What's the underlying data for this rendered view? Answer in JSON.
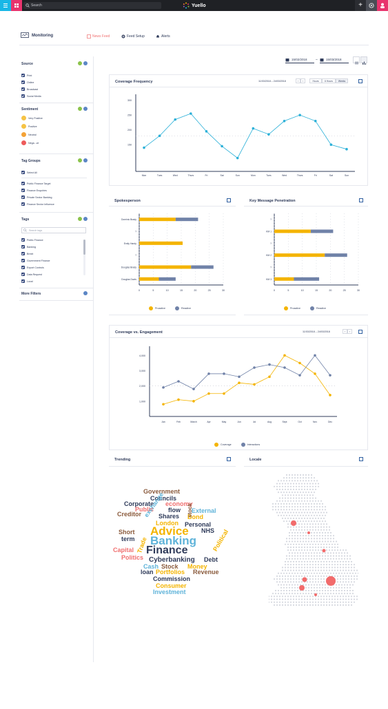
{
  "topbar": {
    "search_placeholder": "Search",
    "logo": "Yuello"
  },
  "nav": {
    "title": "Monitoring",
    "tabs": [
      "News Feed",
      "Feed Setup",
      "Alerts"
    ]
  },
  "dates": {
    "from": "15/02/2018",
    "to": "15/03/2018"
  },
  "sidebar": {
    "source": {
      "title": "Source",
      "items": [
        "Print",
        "Online",
        "Broadcast",
        "Social Media"
      ]
    },
    "sentiment": {
      "title": "Sentiment",
      "items": [
        "Very Positive",
        "Positive",
        "Neutral",
        "Nega...ve"
      ]
    },
    "tag_groups": {
      "title": "Tag Groups",
      "select_all": "Select All",
      "items": [
        "Public Finance Target",
        "Finance Enquiries",
        "Private Sector Banking",
        "Finance Sector Influence"
      ]
    },
    "tags": {
      "title": "Tags",
      "search_placeholder": "Search tags",
      "items": [
        "Public Finance",
        "Banking",
        "Brexit",
        "Government Finance",
        "Export Controls",
        "Data Request",
        "Local"
      ]
    },
    "more_filters": "More Filters",
    "colors": {
      "green": "#8bc34a",
      "blue": "#5b86c5"
    }
  },
  "coverage_frequency": {
    "title": "Coverage Frequency",
    "date_range": "11/03/2018  –  24/03/2018",
    "granularity": [
      "Hours",
      "6 Hours",
      "Weeks"
    ]
  },
  "spokesperson": {
    "title": "Spokesperson",
    "legend": [
      "Proactive",
      "Reactive"
    ]
  },
  "key_message": {
    "title": "Key Message Penetration",
    "legend": [
      "Proactive",
      "Reactive"
    ]
  },
  "coverage_engagement": {
    "title": "Coverage vs. Engagement",
    "date_range": "11/03/2018  –  24/03/2018",
    "legend": [
      "Coverage",
      "Interactions"
    ]
  },
  "trending": {
    "title": "Trending",
    "words": [
      {
        "t": "Government",
        "c": "#8a5a3c"
      },
      {
        "t": "Councils",
        "c": "#2f3b5a"
      },
      {
        "t": "Corporate",
        "c": "#2f3b5a"
      },
      {
        "t": "economy",
        "c": "#f07070"
      },
      {
        "t": "Public",
        "c": "#f07070"
      },
      {
        "t": "flow",
        "c": "#2f3b5a"
      },
      {
        "t": "External",
        "c": "#5fb3d9"
      },
      {
        "t": "Creditor",
        "c": "#8a5a3c"
      },
      {
        "t": "exchange",
        "c": "#5fb3d9"
      },
      {
        "t": "Shares",
        "c": "#2f3b5a"
      },
      {
        "t": "Bond",
        "c": "#f4b400"
      },
      {
        "t": "stock",
        "c": "#8a5a3c"
      },
      {
        "t": "London",
        "c": "#f4b400"
      },
      {
        "t": "Personal",
        "c": "#2f3b5a"
      },
      {
        "t": "Short",
        "c": "#8a5a3c"
      },
      {
        "t": "Advice",
        "c": "#f4b400"
      },
      {
        "t": "NHS",
        "c": "#2f3b5a"
      },
      {
        "t": "term",
        "c": "#2f3b5a"
      },
      {
        "t": "Banking",
        "c": "#5fb3d9"
      },
      {
        "t": "Capital",
        "c": "#f07070"
      },
      {
        "t": "Trade",
        "c": "#f4b400"
      },
      {
        "t": "Finance",
        "c": "#2f3b5a"
      },
      {
        "t": "Political",
        "c": "#f4b400"
      },
      {
        "t": "Politics",
        "c": "#f07070"
      },
      {
        "t": "Cyberbanking",
        "c": "#2f3b5a"
      },
      {
        "t": "Debt",
        "c": "#2f3b5a"
      },
      {
        "t": "Cash",
        "c": "#5fb3d9"
      },
      {
        "t": "Stock",
        "c": "#8a5a3c"
      },
      {
        "t": "Money",
        "c": "#f4b400"
      },
      {
        "t": "loan",
        "c": "#2f3b5a"
      },
      {
        "t": "Portfolios",
        "c": "#f4b400"
      },
      {
        "t": "Revenue",
        "c": "#8a5a3c"
      },
      {
        "t": "Commission",
        "c": "#2f3b5a"
      },
      {
        "t": "Consumer",
        "c": "#f4b400"
      },
      {
        "t": "Investment",
        "c": "#5fb3d9"
      }
    ]
  },
  "locale": {
    "title": "Locale"
  },
  "chart_data": [
    {
      "type": "line",
      "title": "Coverage Frequency",
      "categories": [
        "Mon",
        "Tues",
        "Wed",
        "Thurs",
        "Fri",
        "Sat",
        "Sun",
        "Mon",
        "Tues",
        "Wed",
        "Thurs",
        "Fri",
        "Sat",
        "Sun"
      ],
      "yticks": [
        "150",
        "200",
        "250",
        "300"
      ],
      "values": [
        140,
        180,
        235,
        255,
        195,
        145,
        105,
        205,
        185,
        230,
        250,
        230,
        150,
        135
      ],
      "ylim": [
        60,
        320
      ],
      "color": "#2bb0d8"
    },
    {
      "type": "bar",
      "title": "Spokesperson",
      "categories": [
        "Dominic Brady",
        "?",
        "Emily Hardy",
        "?",
        "Douglas Brady",
        "Douglas Davis"
      ],
      "series": [
        {
          "name": "Proactive",
          "values": [
            13,
            null,
            15.5,
            null,
            18.5,
            7
          ]
        },
        {
          "name": "Reactive",
          "values": [
            8,
            null,
            0,
            null,
            8,
            6
          ]
        }
      ],
      "xticks": [
        "0",
        "5",
        "10",
        "15",
        "20",
        "25",
        "30"
      ],
      "xlim": [
        0,
        30
      ]
    },
    {
      "type": "bar",
      "title": "Key Message Penetration",
      "categories": [
        "?",
        "KM 1",
        "?",
        "KM 2",
        "?",
        "KM 3"
      ],
      "series": [
        {
          "name": "Proactive",
          "values": [
            null,
            13,
            null,
            18,
            null,
            7
          ]
        },
        {
          "name": "Reactive",
          "values": [
            null,
            8,
            null,
            8,
            null,
            9
          ]
        }
      ],
      "xticks": [
        "0",
        "5",
        "10",
        "15",
        "20",
        "25",
        "30"
      ],
      "xlim": [
        0,
        30
      ]
    },
    {
      "type": "line",
      "title": "Coverage vs. Engagement",
      "categories": [
        "Jan",
        "Feb",
        "March",
        "Apr",
        "May",
        "Jun",
        "Jul",
        "Aug",
        "Sept",
        "Oct",
        "Nov",
        "Dec"
      ],
      "yticks": [
        "1,000",
        "2,000",
        "3,000",
        "4,000"
      ],
      "ylim": [
        0,
        4600
      ],
      "series": [
        {
          "name": "Coverage",
          "color": "#f4b400",
          "values": [
            800,
            1100,
            1000,
            1500,
            1500,
            2200,
            2100,
            2600,
            4000,
            3500,
            2800,
            1400
          ]
        },
        {
          "name": "Interactions",
          "color": "#7082a8",
          "values": [
            1900,
            2300,
            1800,
            2800,
            2800,
            2600,
            3200,
            3400,
            3200,
            2700,
            4000,
            2700
          ]
        }
      ]
    }
  ]
}
